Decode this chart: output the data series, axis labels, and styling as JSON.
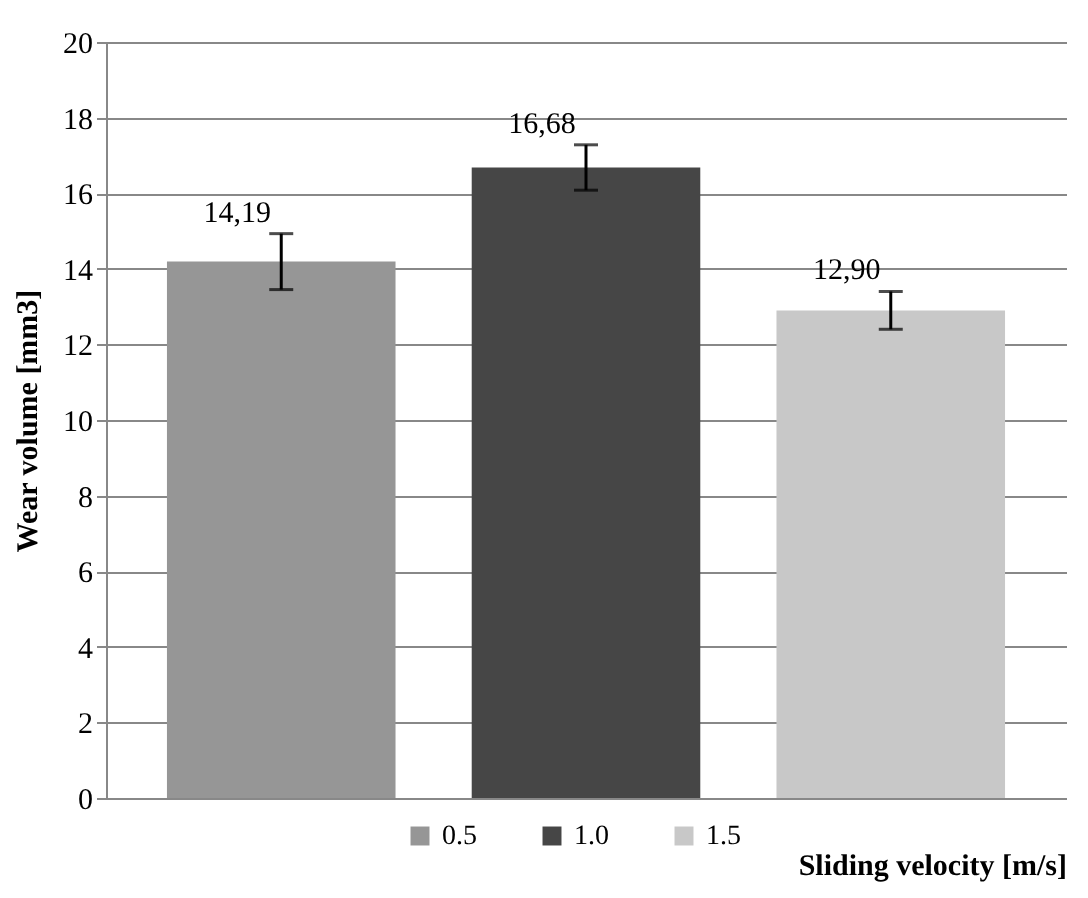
{
  "chart_data": {
    "type": "bar",
    "xlabel": "Sliding velocity [m/s]",
    "ylabel": "Wear volume [mm3]",
    "categories": [
      null,
      null,
      null
    ],
    "series": [
      {
        "name": "0.5",
        "color": "#969696",
        "values": [
          14.19,
          null,
          null
        ],
        "errors": [
          0.74,
          null,
          null
        ],
        "value_labels": [
          "14,19",
          null,
          null
        ]
      },
      {
        "name": "1.0",
        "color": "#464646",
        "values": [
          null,
          16.68,
          null
        ],
        "errors": [
          null,
          0.6,
          null
        ],
        "value_labels": [
          null,
          "16,68",
          null
        ]
      },
      {
        "name": "1.5",
        "color": "#c8c8c8",
        "values": [
          null,
          null,
          12.9
        ],
        "errors": [
          null,
          null,
          0.5
        ],
        "value_labels": [
          null,
          null,
          "12,90"
        ]
      }
    ],
    "ylim": [
      0,
      20
    ],
    "yticks": [
      0,
      2,
      4,
      6,
      8,
      10,
      12,
      14,
      16,
      18,
      20
    ],
    "grid": "y",
    "legend": "bottom",
    "tick_labels": "y"
  }
}
